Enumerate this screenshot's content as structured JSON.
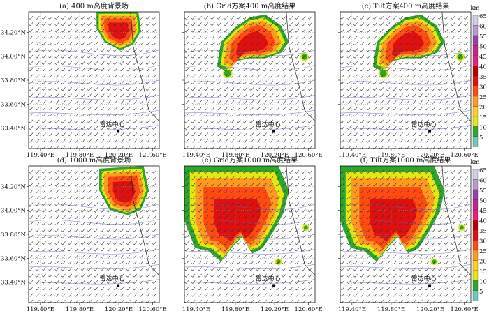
{
  "panels": [
    {
      "id": "a",
      "title": "(a) 400 m高度背景场",
      "kind": "bg",
      "level": "low"
    },
    {
      "id": "b",
      "title": "(b) Grid方案400 m高度结果",
      "kind": "retr",
      "level": "low"
    },
    {
      "id": "c",
      "title": "(c) Tilt方案400 m高度结果",
      "kind": "retr",
      "level": "low"
    },
    {
      "id": "d",
      "title": "(d) 1000 m高度背景场",
      "kind": "bg",
      "level": "high"
    },
    {
      "id": "e",
      "title": "(e) Grid方案1000 m高度结果",
      "kind": "retr",
      "level": "high"
    },
    {
      "id": "f",
      "title": "(f) Tilt方案1000 m高度结果",
      "kind": "retr",
      "level": "high"
    }
  ],
  "axes": {
    "lat_ticks": [
      "34.20°N",
      "34.00°N",
      "33.80°N",
      "33.60°N",
      "33.40°N"
    ],
    "lon_ticks": [
      "119.40°E",
      "119.80°E",
      "120.20°E",
      "120.60°E"
    ]
  },
  "radar_label": "雷达中心",
  "colorbar": {
    "unit": "km",
    "levels": [
      "65",
      "60",
      "55",
      "50",
      "45",
      "40",
      "35",
      "30",
      "25",
      "20",
      "15",
      "10",
      "5"
    ],
    "colors": [
      "#cfcfe8",
      "#b89ad0",
      "#9a3fa8",
      "#c3238a",
      "#e61e80",
      "#b40000",
      "#e01010",
      "#ff4a10",
      "#ff9a1e",
      "#ffd21a",
      "#e6e610",
      "#2ea62e",
      "#6fc8c0"
    ]
  }
}
